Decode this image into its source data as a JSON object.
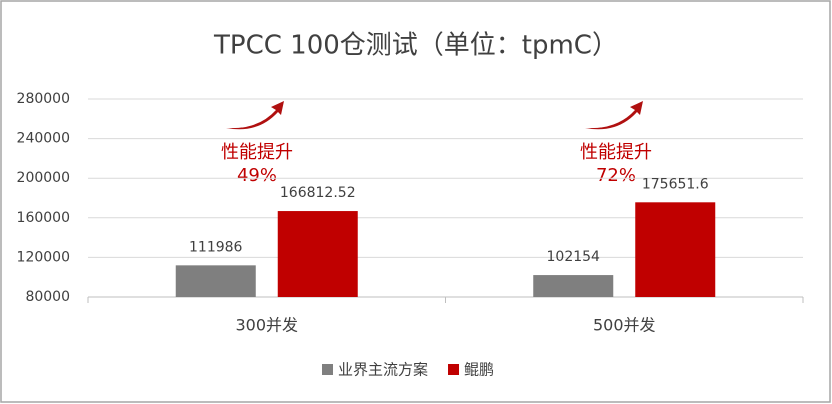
{
  "chart_data": {
    "type": "bar",
    "title": "TPCC 100仓测试（单位：tpmC）",
    "categories": [
      "300并发",
      "500并发"
    ],
    "series": [
      {
        "name": "业界主流方案",
        "color": "#7f7f7f",
        "values": [
          111986,
          102154
        ]
      },
      {
        "name": "鲲鹏",
        "color": "#c00000",
        "values": [
          166812.52,
          175651.6
        ]
      }
    ],
    "annotations": [
      "性能提升",
      "49%",
      "性能提升",
      "72%"
    ],
    "ylim": [
      80000,
      280000
    ],
    "yticks": [
      80000,
      120000,
      160000,
      200000,
      240000,
      280000
    ],
    "grid": true
  }
}
